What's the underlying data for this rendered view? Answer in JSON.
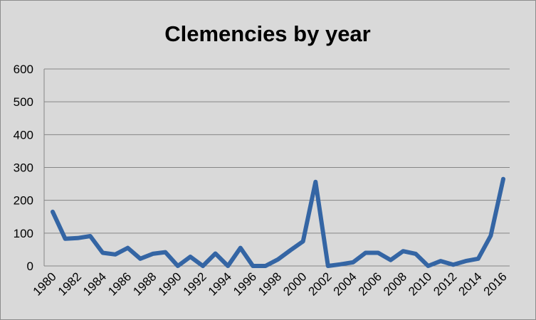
{
  "chart_data": {
    "type": "line",
    "title": "Clemencies by year",
    "xlabel": "",
    "ylabel": "",
    "x": [
      1980,
      1981,
      1982,
      1983,
      1984,
      1985,
      1986,
      1987,
      1988,
      1989,
      1990,
      1991,
      1992,
      1993,
      1994,
      1995,
      1996,
      1997,
      1998,
      1999,
      2000,
      2001,
      2002,
      2003,
      2004,
      2005,
      2006,
      2007,
      2008,
      2009,
      2010,
      2011,
      2012,
      2013,
      2014,
      2015,
      2016
    ],
    "series": [
      {
        "color": "#3465a4",
        "values": [
          165,
          83,
          85,
          91,
          40,
          35,
          55,
          22,
          37,
          42,
          0,
          28,
          0,
          38,
          0,
          55,
          0,
          0,
          20,
          48,
          75,
          256,
          0,
          5,
          11,
          40,
          40,
          18,
          45,
          37,
          0,
          15,
          4,
          15,
          22,
          92,
          265
        ]
      }
    ],
    "x_tick_labels": [
      "1980",
      "1982",
      "1984",
      "1986",
      "1988",
      "1990",
      "1992",
      "1994",
      "1996",
      "1998",
      "2000",
      "2002",
      "2004",
      "2006",
      "2008",
      "2010",
      "2012",
      "2014",
      "2016"
    ],
    "y_tick_labels": [
      "0",
      "100",
      "200",
      "300",
      "400",
      "500",
      "600"
    ],
    "ylim": [
      0,
      600
    ],
    "xlim": [
      1980,
      2016
    ],
    "grid": true,
    "legend": "none"
  }
}
